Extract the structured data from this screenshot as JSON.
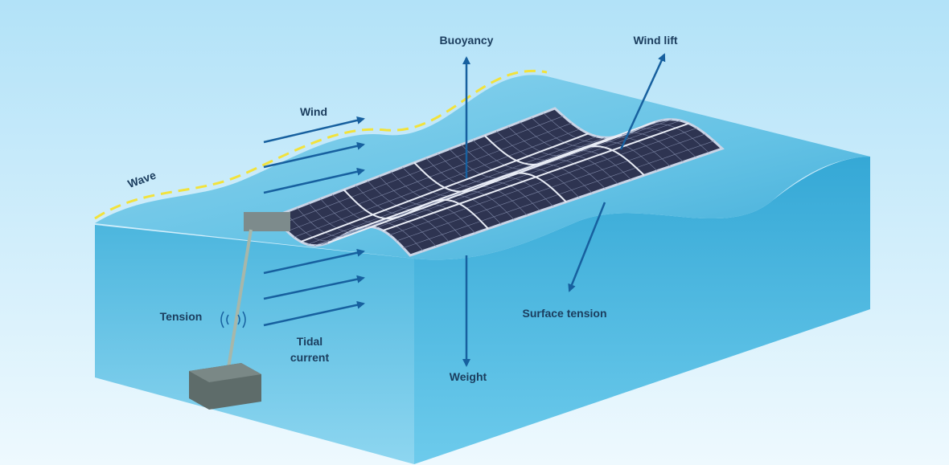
{
  "labels": {
    "buoyancy": "Buoyancy",
    "wind_lift": "Wind lift",
    "wind": "Wind",
    "wave": "Wave",
    "tension": "Tension",
    "tidal_current": [
      "Tidal",
      "current"
    ],
    "weight": "Weight",
    "surface_tension": "Surface tension"
  }
}
